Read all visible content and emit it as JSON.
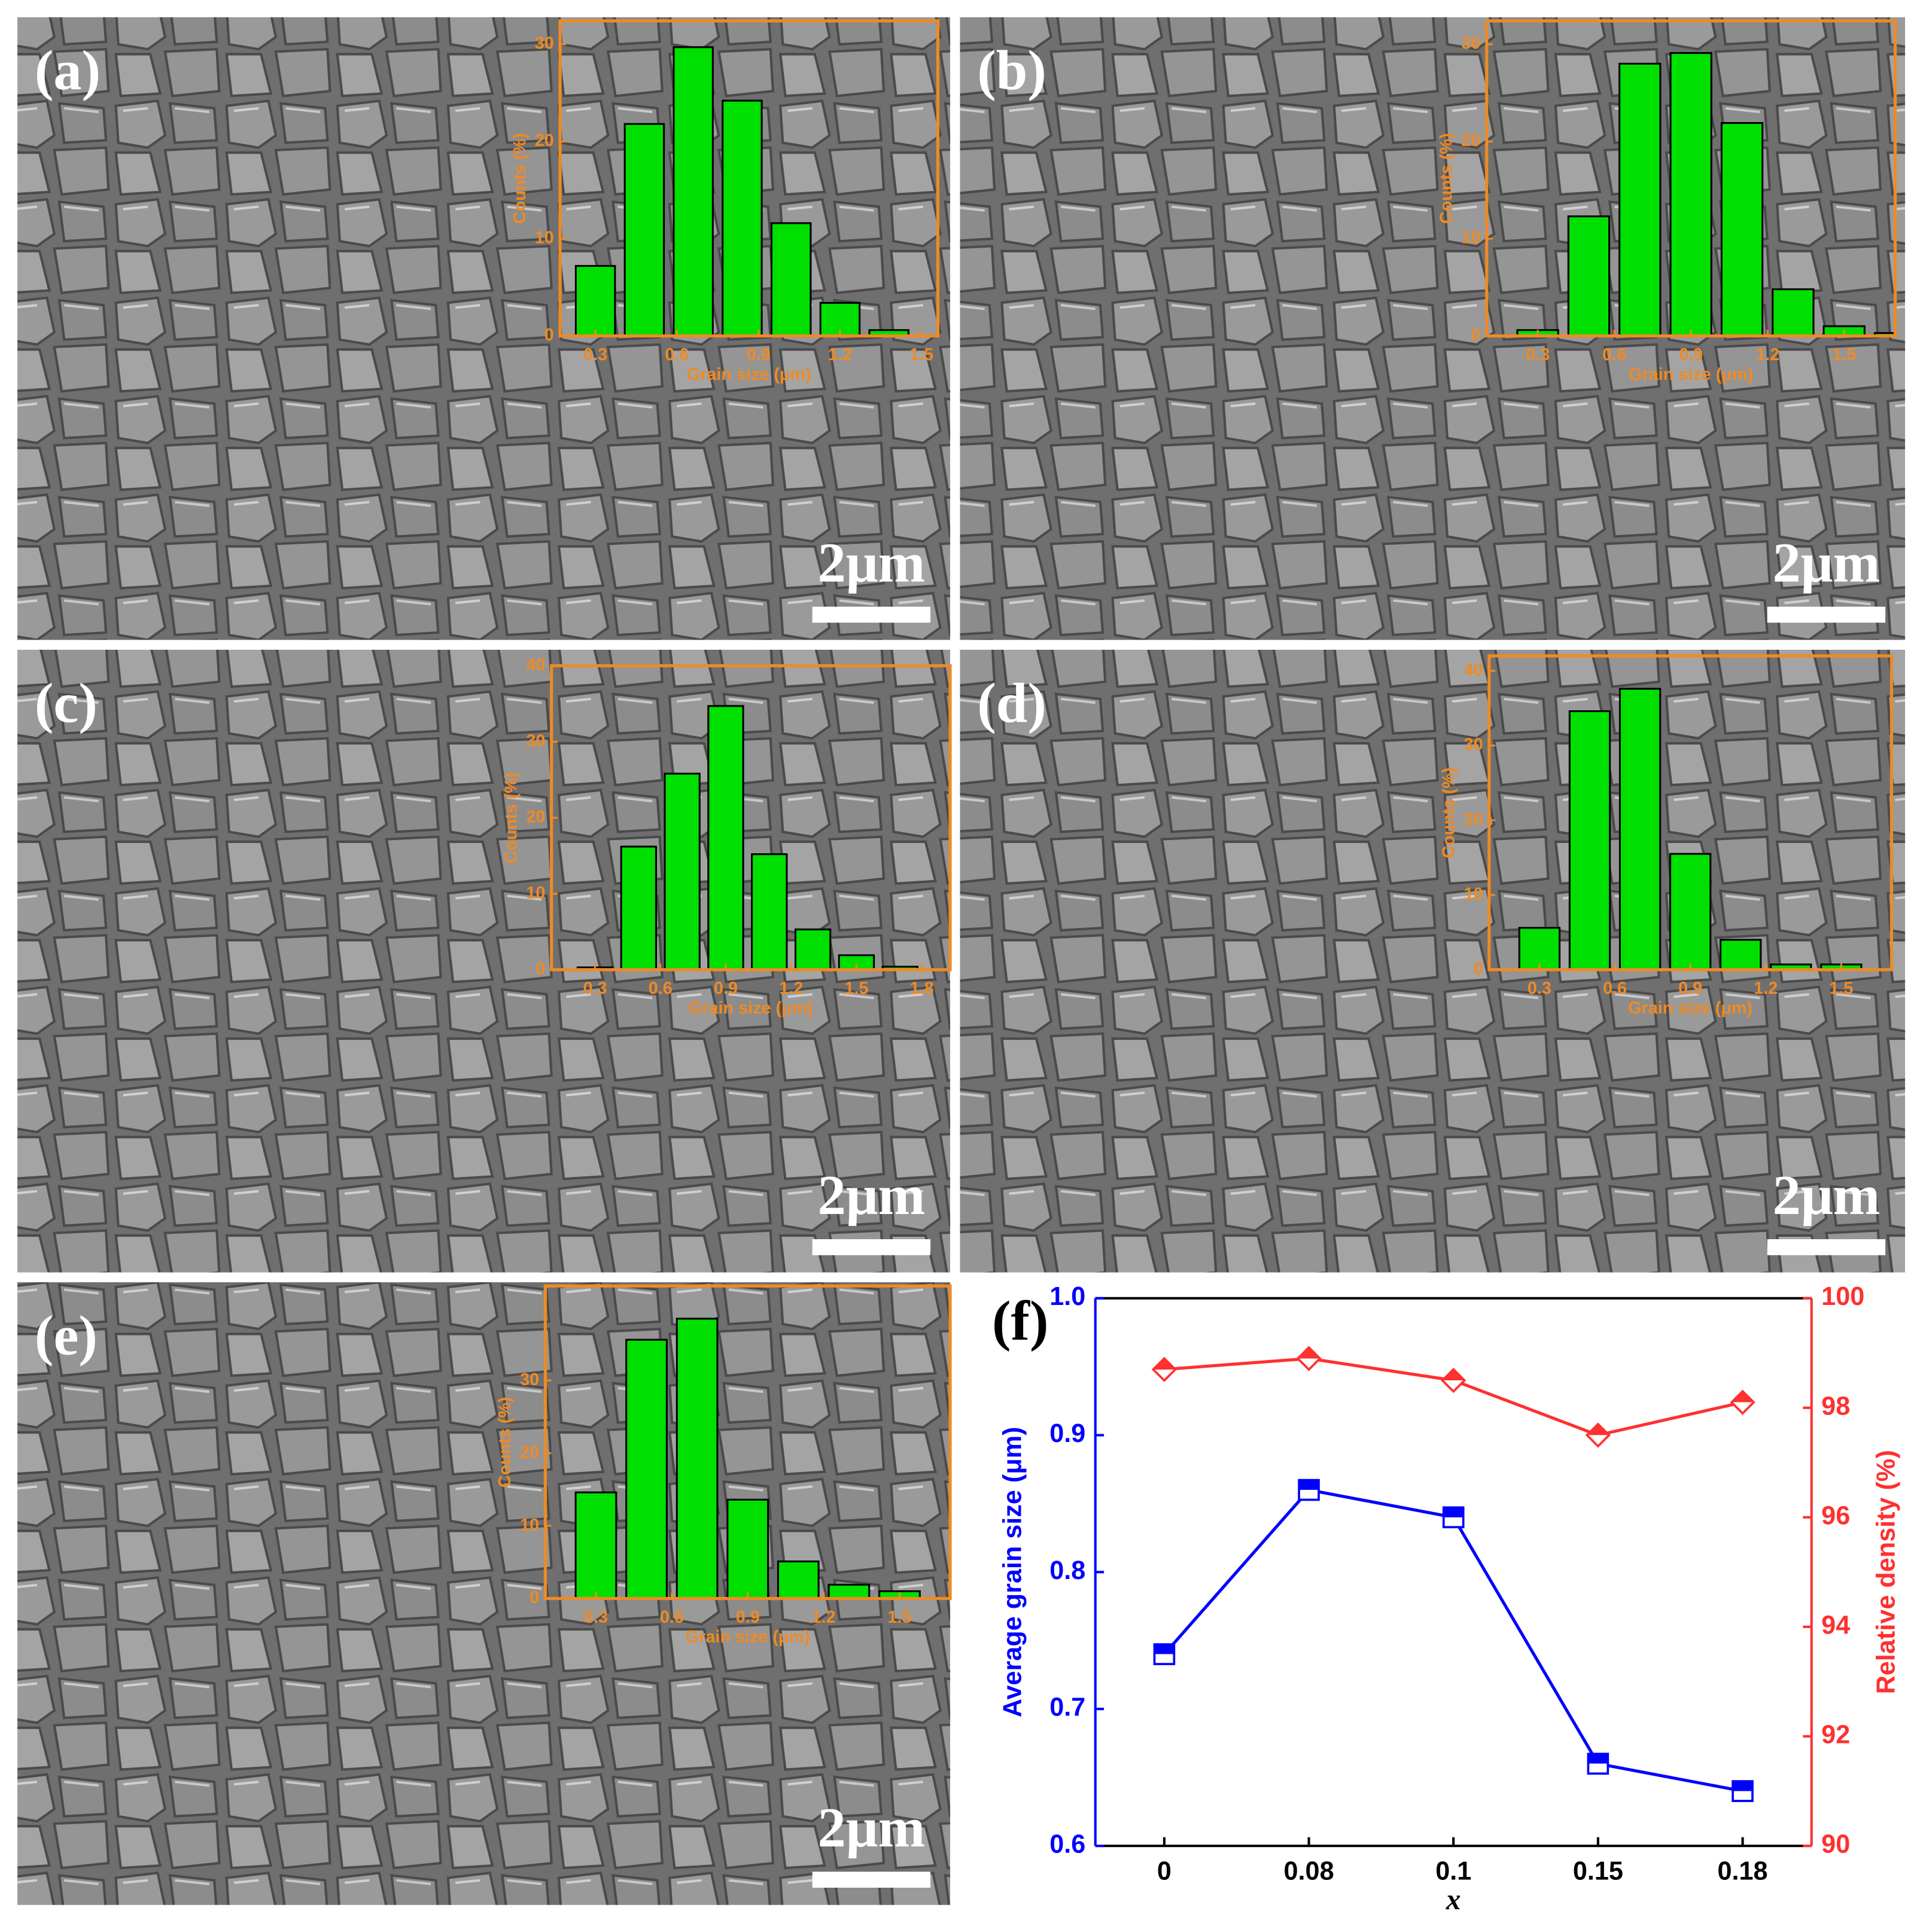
{
  "chart_data": [
    {
      "type": "histogram",
      "panel_label": "(a)",
      "scale_bar": "2μm",
      "x_label": "Grain size (μm)",
      "y_label": "Counts (%)",
      "color": "#00e000",
      "bins": [
        0.21,
        0.39,
        0.57,
        0.75,
        0.93,
        1.11,
        1.29,
        1.47
      ],
      "counts": [
        7.2,
        21.8,
        29.7,
        24.2,
        11.6,
        3.4,
        0.6
      ],
      "xlim": [
        0.17,
        1.56
      ],
      "ylim": [
        0,
        32.4
      ],
      "xticks": [
        0.3,
        0.6,
        0.9,
        1.2,
        1.5
      ],
      "yticks": [
        0,
        10,
        20,
        30
      ]
    },
    {
      "type": "histogram",
      "panel_label": "(b)",
      "scale_bar": "2μm",
      "x_label": "Grain size (μm)",
      "y_label": "Counts (%)",
      "color": "#00e000",
      "bins": [
        0.2,
        0.4,
        0.6,
        0.8,
        1.0,
        1.2,
        1.4,
        1.6,
        1.8
      ],
      "counts": [
        0.6,
        12.3,
        28,
        29.1,
        21.9,
        4.8,
        1,
        0.3
      ],
      "xlim": [
        0.1,
        1.7
      ],
      "ylim": [
        0,
        32.4
      ],
      "xticks": [
        0.3,
        0.6,
        0.9,
        1.2,
        1.5
      ],
      "yticks": [
        0,
        10,
        20,
        30
      ]
    },
    {
      "type": "histogram",
      "panel_label": "(c)",
      "scale_bar": "2μm",
      "x_label": "Grain size (μm)",
      "y_label": "Counts (%)",
      "color": "#00e000",
      "bins": [
        0.2,
        0.4,
        0.6,
        0.8,
        1.0,
        1.2,
        1.4,
        1.6,
        1.8
      ],
      "counts": [
        0.3,
        16.2,
        25.8,
        34.7,
        15.2,
        5.3,
        1.9,
        0.4
      ],
      "xlim": [
        0.1,
        1.93
      ],
      "ylim": [
        0,
        40
      ],
      "xticks": [
        0.3,
        0.6,
        0.9,
        1.2,
        1.5,
        1.8
      ],
      "yticks": [
        0,
        10,
        20,
        30,
        40
      ]
    },
    {
      "type": "histogram",
      "panel_label": "(d)",
      "scale_bar": "2μm",
      "x_label": "Grain size (μm)",
      "y_label": "Counts (%)",
      "color": "#00e000",
      "bins": [
        0.2,
        0.4,
        0.6,
        0.8,
        1.0,
        1.2,
        1.4,
        1.6
      ],
      "counts": [
        5.6,
        34.6,
        37.6,
        15.5,
        4.0,
        0.7,
        0.7
      ],
      "xlim": [
        0.1,
        1.7
      ],
      "ylim": [
        0,
        42
      ],
      "xticks": [
        0.3,
        0.6,
        0.9,
        1.2,
        1.5
      ],
      "yticks": [
        0,
        10,
        20,
        30,
        40
      ]
    },
    {
      "type": "histogram",
      "panel_label": "(e)",
      "scale_bar": "2μm",
      "x_label": "Grain size (μm)",
      "y_label": "Counts (%)",
      "color": "#00e000",
      "bins": [
        0.2,
        0.4,
        0.6,
        0.8,
        1.0,
        1.2,
        1.4,
        1.6
      ],
      "counts": [
        14.6,
        35.6,
        38.5,
        13.6,
        5.1,
        1.9,
        1
      ],
      "xlim": [
        0.1,
        1.7
      ],
      "ylim": [
        0,
        43
      ],
      "xticks": [
        0.3,
        0.6,
        0.9,
        1.2,
        1.5
      ],
      "yticks": [
        0,
        10,
        20,
        30
      ]
    },
    {
      "type": "line",
      "panel_label": "(f)",
      "x_label": "x",
      "y_label": "Average grain size (μm)",
      "y2_label": "Relative density (%)",
      "categories": [
        "0",
        "0.08",
        "0.1",
        "0.15",
        "0.18"
      ],
      "series": [
        {
          "color": "#0000ff",
          "marker": "square",
          "values": [
            0.74,
            0.86,
            0.84,
            0.66,
            0.64
          ]
        },
        {
          "color": "#ff3030",
          "marker": "diamond",
          "axis": "y2",
          "values": [
            98.7,
            98.9,
            98.5,
            97.5,
            98.1
          ]
        }
      ],
      "ylim": [
        0.6,
        1.0
      ],
      "yticks": [
        0.6,
        0.7,
        0.8,
        0.9,
        {
          "value": 1.0,
          "label": "1.0"
        }
      ],
      "y2lim": [
        90,
        100
      ],
      "y2ticks": [
        90,
        92,
        94,
        96,
        98,
        100
      ]
    }
  ]
}
